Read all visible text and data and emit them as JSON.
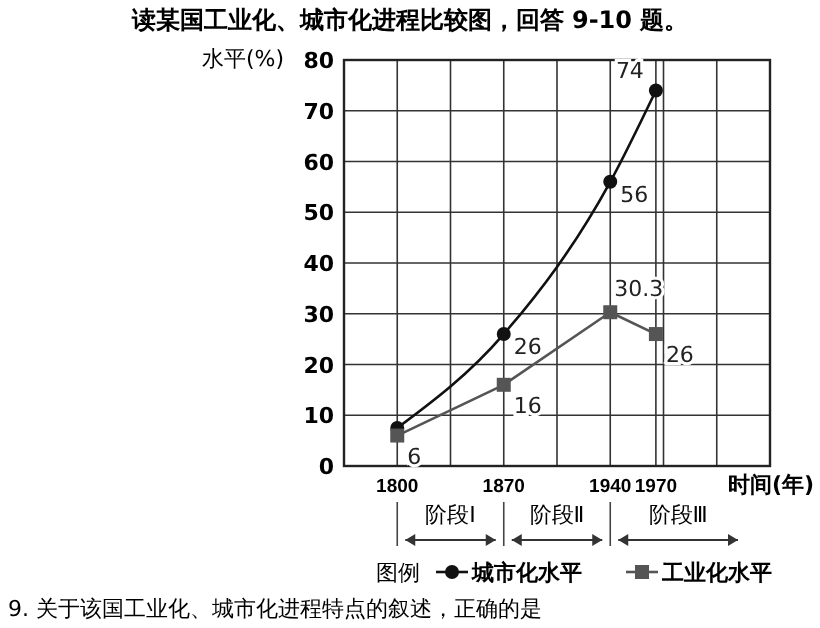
{
  "chart_data": {
    "type": "line",
    "title": "读某国工业化、城市化进程比较图，回答 9-10 题。",
    "xlabel": "时间(年)",
    "ylabel": "水平(%)",
    "legend_title": "图例",
    "legend": "bottom",
    "grid": true,
    "x": [
      1800,
      1870,
      1940,
      1970
    ],
    "xlim": [
      1765,
      2045
    ],
    "xticks": [
      1800,
      {
        "value": 1835,
        "label": null
      },
      1870,
      {
        "value": 1905,
        "label": null
      },
      1940,
      1970,
      {
        "value": 1975,
        "label": null
      },
      {
        "value": 2010,
        "label": null
      }
    ],
    "ylim": [
      0,
      80
    ],
    "yticks": [
      0,
      10,
      20,
      30,
      40,
      50,
      60,
      70,
      80
    ],
    "series": [
      {
        "name": "城市化水平",
        "color": "#111111",
        "marker": "circle",
        "values": [
          7.5,
          26,
          56,
          74
        ],
        "value_labels": [
          null,
          "26",
          "56",
          "74"
        ]
      },
      {
        "name": "工业化水平",
        "color": "#555555",
        "marker": "square",
        "values": [
          6,
          16,
          30.3,
          26
        ],
        "value_labels": [
          "6",
          "16",
          "30.3",
          "26"
        ]
      }
    ],
    "annotations": [
      "阶段Ⅰ",
      "阶段Ⅱ",
      "阶段Ⅲ",
      "9. 关于该国工业化、城市化进程特点的叙述，正确的是"
    ]
  }
}
